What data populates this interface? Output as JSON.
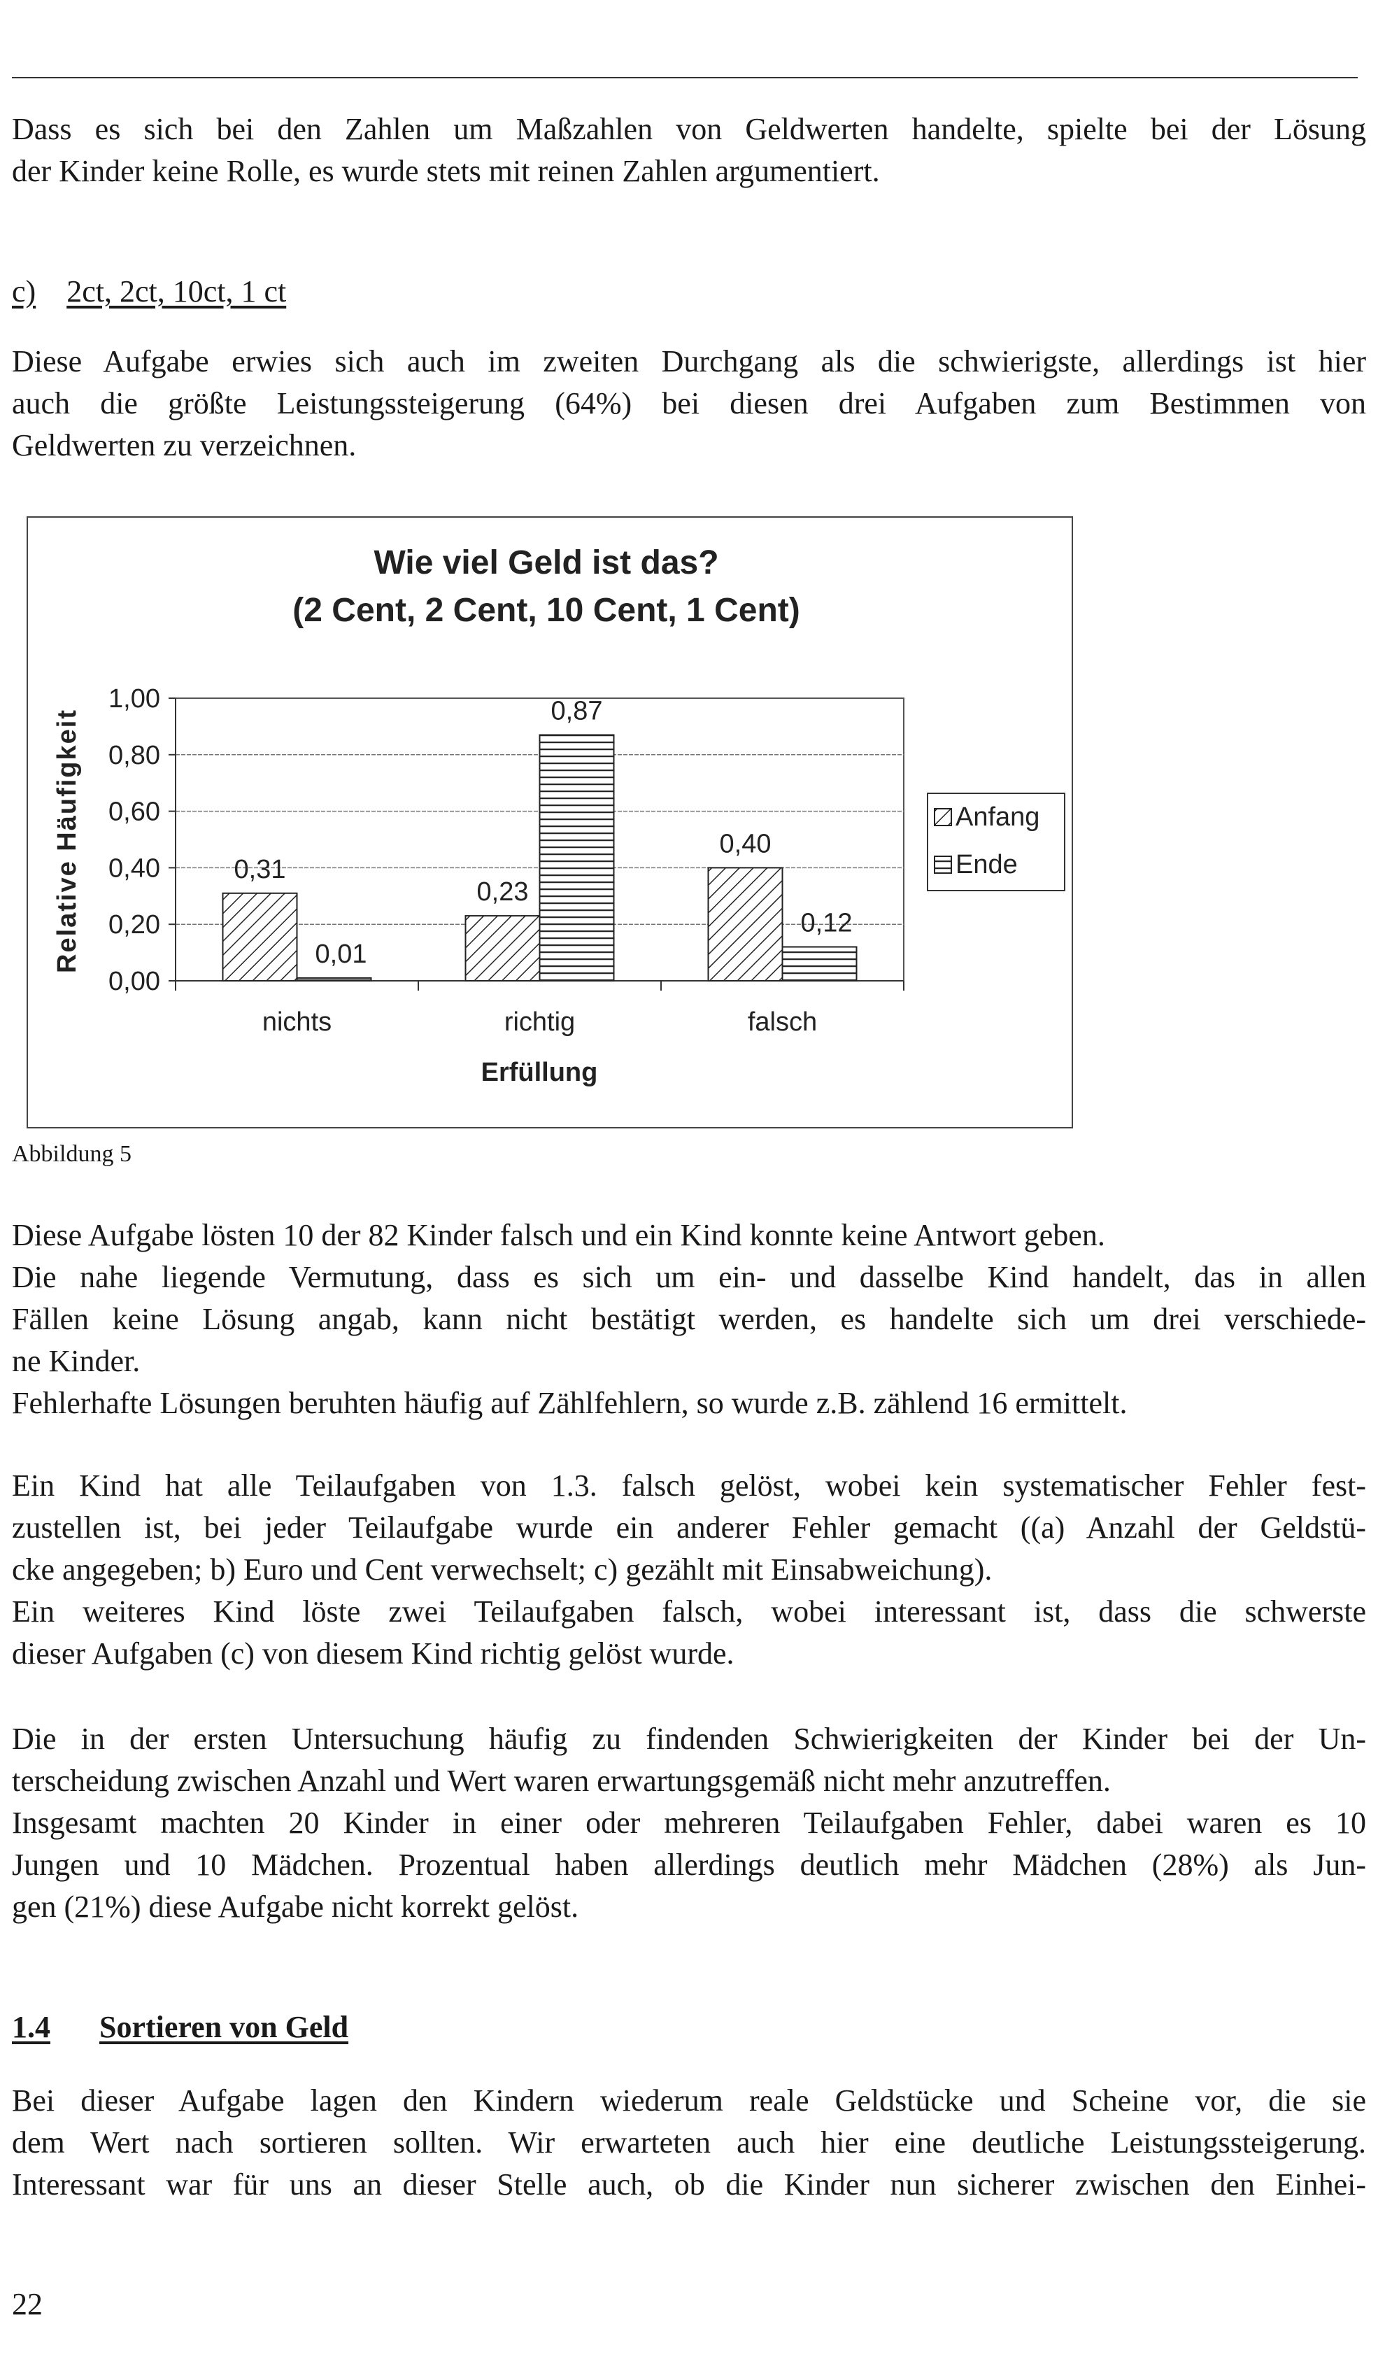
{
  "p1": [
    "Dass es sich bei den Zahlen um Maßzahlen von Geldwerten handelte, spielte bei der Lösung",
    "der Kinder keine Rolle, es wurde stets mit reinen Zahlen argumentiert."
  ],
  "subsection": {
    "label": "c)",
    "title": "2ct, 2ct, 10ct, 1 ct"
  },
  "p2": [
    "Diese Aufgabe erwies sich auch im zweiten Durchgang als die schwierigste, allerdings ist hier",
    "auch die größte Leistungssteigerung (64%) bei diesen drei Aufgaben zum Bestimmen von",
    "Geldwerten zu verzeichnen."
  ],
  "figure_caption": "Abbildung 5",
  "p3": [
    "Diese Aufgabe lösten 10 der 82 Kinder falsch und ein Kind konnte keine Antwort geben.",
    "Die nahe liegende Vermutung, dass es sich um ein- und dasselbe Kind handelt, das in allen",
    "Fällen keine Lösung angab, kann nicht bestätigt werden, es handelte sich um drei verschiede-",
    "ne Kinder.",
    "Fehlerhafte Lösungen beruhten häufig auf Zählfehlern, so wurde z.B. zählend 16 ermittelt."
  ],
  "p4": [
    "Ein Kind hat alle Teilaufgaben von 1.3. falsch gelöst, wobei kein systematischer Fehler fest-",
    "zustellen ist, bei jeder Teilaufgabe wurde ein anderer Fehler gemacht ((a) Anzahl der Geldstü-",
    "cke angegeben; b) Euro und Cent verwechselt; c) gezählt mit Einsabweichung).",
    "Ein weiteres Kind löste zwei Teilaufgaben falsch, wobei interessant ist, dass die schwerste",
    "dieser Aufgaben (c) von diesem Kind richtig gelöst wurde."
  ],
  "p5": [
    "Die in der ersten Untersuchung häufig zu findenden Schwierigkeiten der Kinder bei der Un-",
    "terscheidung zwischen Anzahl und Wert waren erwartungsgemäß nicht mehr anzutreffen.",
    "Insgesamt machten 20 Kinder in einer oder mehreren Teilaufgaben Fehler, dabei waren es 10",
    "Jungen und 10 Mädchen. Prozentual haben allerdings deutlich mehr Mädchen (28%) als Jun-",
    "gen (21%) diese Aufgabe nicht korrekt gelöst."
  ],
  "section": {
    "number": "1.4",
    "title": "Sortieren von Geld"
  },
  "p6": [
    "Bei dieser Aufgabe lagen den Kindern wiederum reale Geldstücke und Scheine vor, die sie",
    "dem Wert nach sortieren sollten. Wir erwarteten auch hier eine deutliche Leistungssteigerung.",
    "Interessant war für uns an dieser Stelle auch, ob die Kinder nun sicherer zwischen den Einhei-"
  ],
  "page_number": "22",
  "chart_data": {
    "type": "bar",
    "title": [
      "Wie viel Geld ist das?",
      "(2 Cent, 2 Cent, 10 Cent, 1 Cent)"
    ],
    "xlabel": "Erfüllung",
    "ylabel": "Relative Häufigkeit",
    "categories": [
      "nichts",
      "richtig",
      "falsch"
    ],
    "series": [
      {
        "name": "Anfang",
        "values": [
          0.31,
          0.23,
          0.4
        ],
        "labels": [
          "0,31",
          "0,23",
          "0,40"
        ],
        "pattern": "diagonal-hatch"
      },
      {
        "name": "Ende",
        "values": [
          0.01,
          0.87,
          0.12
        ],
        "labels": [
          "0,01",
          "0,87",
          "0,12"
        ],
        "pattern": "horizontal-lines"
      }
    ],
    "ylim": [
      0,
      1
    ],
    "yticks": [
      "0,00",
      "0,20",
      "0,40",
      "0,60",
      "0,80",
      "1,00"
    ],
    "grid": true,
    "legend": "right"
  }
}
